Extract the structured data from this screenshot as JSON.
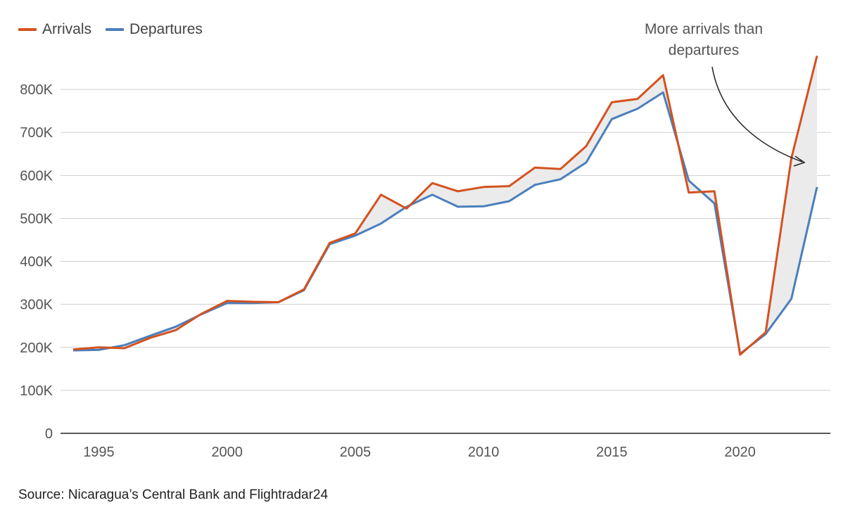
{
  "chart_data": {
    "type": "line",
    "title": "",
    "xlabel": "",
    "ylabel": "",
    "x": [
      1994,
      1995,
      1996,
      1997,
      1998,
      1999,
      2000,
      2001,
      2002,
      2003,
      2004,
      2005,
      2006,
      2007,
      2008,
      2009,
      2010,
      2011,
      2012,
      2013,
      2014,
      2015,
      2016,
      2017,
      2018,
      2019,
      2020,
      2021,
      2022,
      2023
    ],
    "series": [
      {
        "name": "Arrivals",
        "color": "#d4521f",
        "values": [
          195000,
          200000,
          198000,
          222000,
          240000,
          278000,
          308000,
          306000,
          305000,
          335000,
          443000,
          465000,
          555000,
          523000,
          582000,
          563000,
          573000,
          575000,
          618000,
          615000,
          668000,
          770000,
          778000,
          833000,
          560000,
          563000,
          183000,
          235000,
          640000,
          878000
        ]
      },
      {
        "name": "Departures",
        "color": "#4a7fbd",
        "values": [
          193000,
          194000,
          205000,
          227000,
          248000,
          277000,
          303000,
          303000,
          305000,
          333000,
          440000,
          460000,
          488000,
          527000,
          555000,
          527000,
          528000,
          540000,
          578000,
          591000,
          630000,
          731000,
          755000,
          793000,
          588000,
          535000,
          185000,
          231000,
          313000,
          573000
        ]
      }
    ],
    "xticks": [
      "1995",
      "2000",
      "2005",
      "2010",
      "2015",
      "2020"
    ],
    "yticks": [
      "0",
      "100K",
      "200K",
      "300K",
      "400K",
      "500K",
      "600K",
      "700K",
      "800K"
    ],
    "ylim": [
      0,
      900000
    ],
    "xlim": [
      1994,
      2023
    ],
    "grid": true,
    "legend_position": "top-left",
    "annotation": {
      "line1": "More arrivals than",
      "line2": "departures"
    },
    "fill_between_color": "#ebebeb"
  },
  "legend": {
    "arrivals_label": "Arrivals",
    "departures_label": "Departures"
  },
  "source": "Source: Nicaragua’s Central Bank and Flightradar24"
}
